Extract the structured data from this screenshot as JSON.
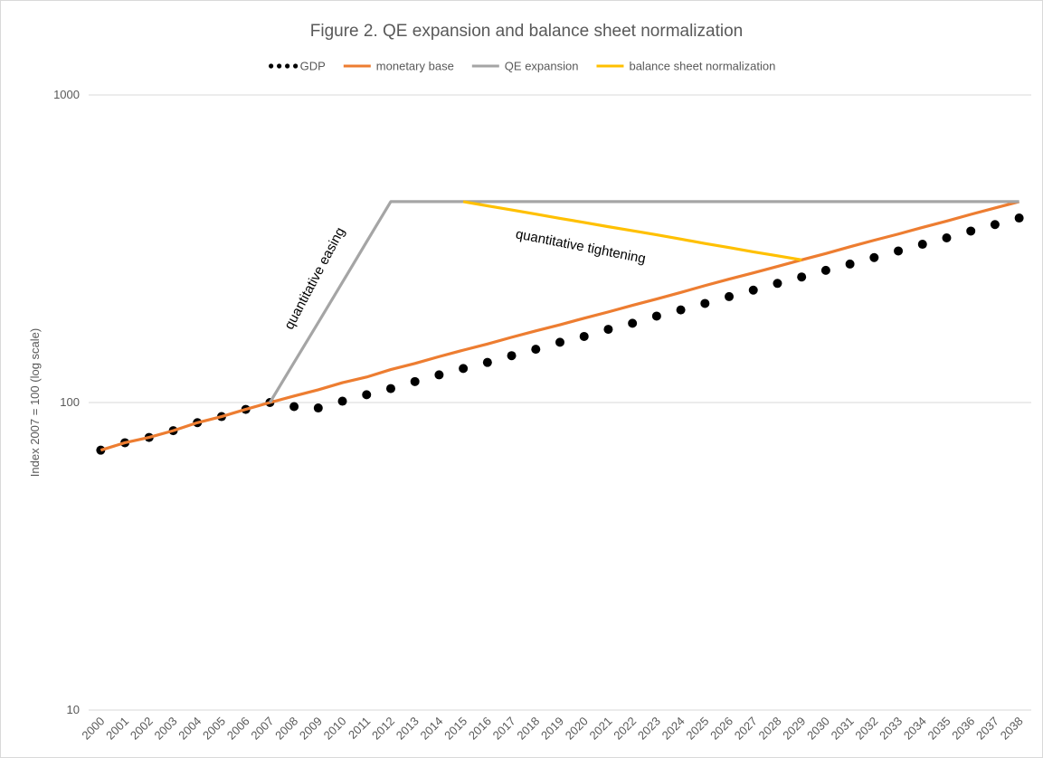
{
  "chart_data": {
    "type": "line",
    "title": "Figure 2. QE expansion and balance sheet normalization",
    "y_label": "Index 2007 = 100 (log scale)",
    "log_scale": true,
    "grid": true,
    "legend": "top",
    "ylim": [
      10,
      1000
    ],
    "yticks": [
      10,
      100,
      1000
    ],
    "categories": [
      "2000",
      "2001",
      "2002",
      "2003",
      "2004",
      "2005",
      "2006",
      "2007",
      "2008",
      "2009",
      "2010",
      "2011",
      "2012",
      "2013",
      "2014",
      "2015",
      "2016",
      "2017",
      "2018",
      "2019",
      "2020",
      "2021",
      "2022",
      "2023",
      "2024",
      "2025",
      "2026",
      "2027",
      "2028",
      "2029",
      "2030",
      "2031",
      "2032",
      "2033",
      "2034",
      "2035",
      "2036",
      "2037",
      "2038"
    ],
    "series": [
      {
        "name": "GDP",
        "color": "#000000",
        "style": "dots",
        "values": [
          70,
          74,
          77,
          81,
          86,
          90,
          95,
          100,
          97,
          96,
          101,
          106,
          111,
          117,
          123,
          129,
          135,
          142,
          149,
          157,
          164,
          173,
          181,
          191,
          200,
          210,
          221,
          232,
          244,
          256,
          269,
          282,
          296,
          311,
          327,
          343,
          361,
          379,
          398
        ]
      },
      {
        "name": "monetary base",
        "color": "#ed7d31",
        "style": "line",
        "values": [
          70,
          74,
          77,
          81,
          86,
          90,
          95,
          100,
          105,
          110,
          116,
          121,
          128,
          134,
          141,
          148,
          155,
          163,
          171,
          179,
          188,
          197,
          207,
          217,
          228,
          240,
          252,
          264,
          277,
          291,
          305,
          321,
          337,
          353,
          371,
          389,
          409,
          429,
          450
        ]
      },
      {
        "name": "QE expansion",
        "color": "#a5a5a5",
        "style": "line",
        "values": [
          null,
          null,
          null,
          null,
          null,
          null,
          null,
          100,
          135,
          182,
          246,
          333,
          450,
          450,
          450,
          450,
          450,
          450,
          450,
          450,
          450,
          450,
          450,
          450,
          450,
          450,
          450,
          450,
          450,
          450,
          450,
          450,
          450,
          450,
          450,
          450,
          450,
          450,
          450
        ]
      },
      {
        "name": "balance sheet normalization",
        "color": "#ffc000",
        "style": "line",
        "values": [
          null,
          null,
          null,
          null,
          null,
          null,
          null,
          null,
          null,
          null,
          null,
          null,
          null,
          null,
          null,
          450,
          436,
          423,
          410,
          397,
          385,
          373,
          362,
          351,
          340,
          329,
          319,
          309,
          300,
          291,
          null,
          null,
          null,
          null,
          null,
          null,
          null,
          null,
          null
        ]
      }
    ],
    "annotations": [
      {
        "text": "quantitative easing"
      },
      {
        "text": "quantitative tightening"
      }
    ]
  }
}
